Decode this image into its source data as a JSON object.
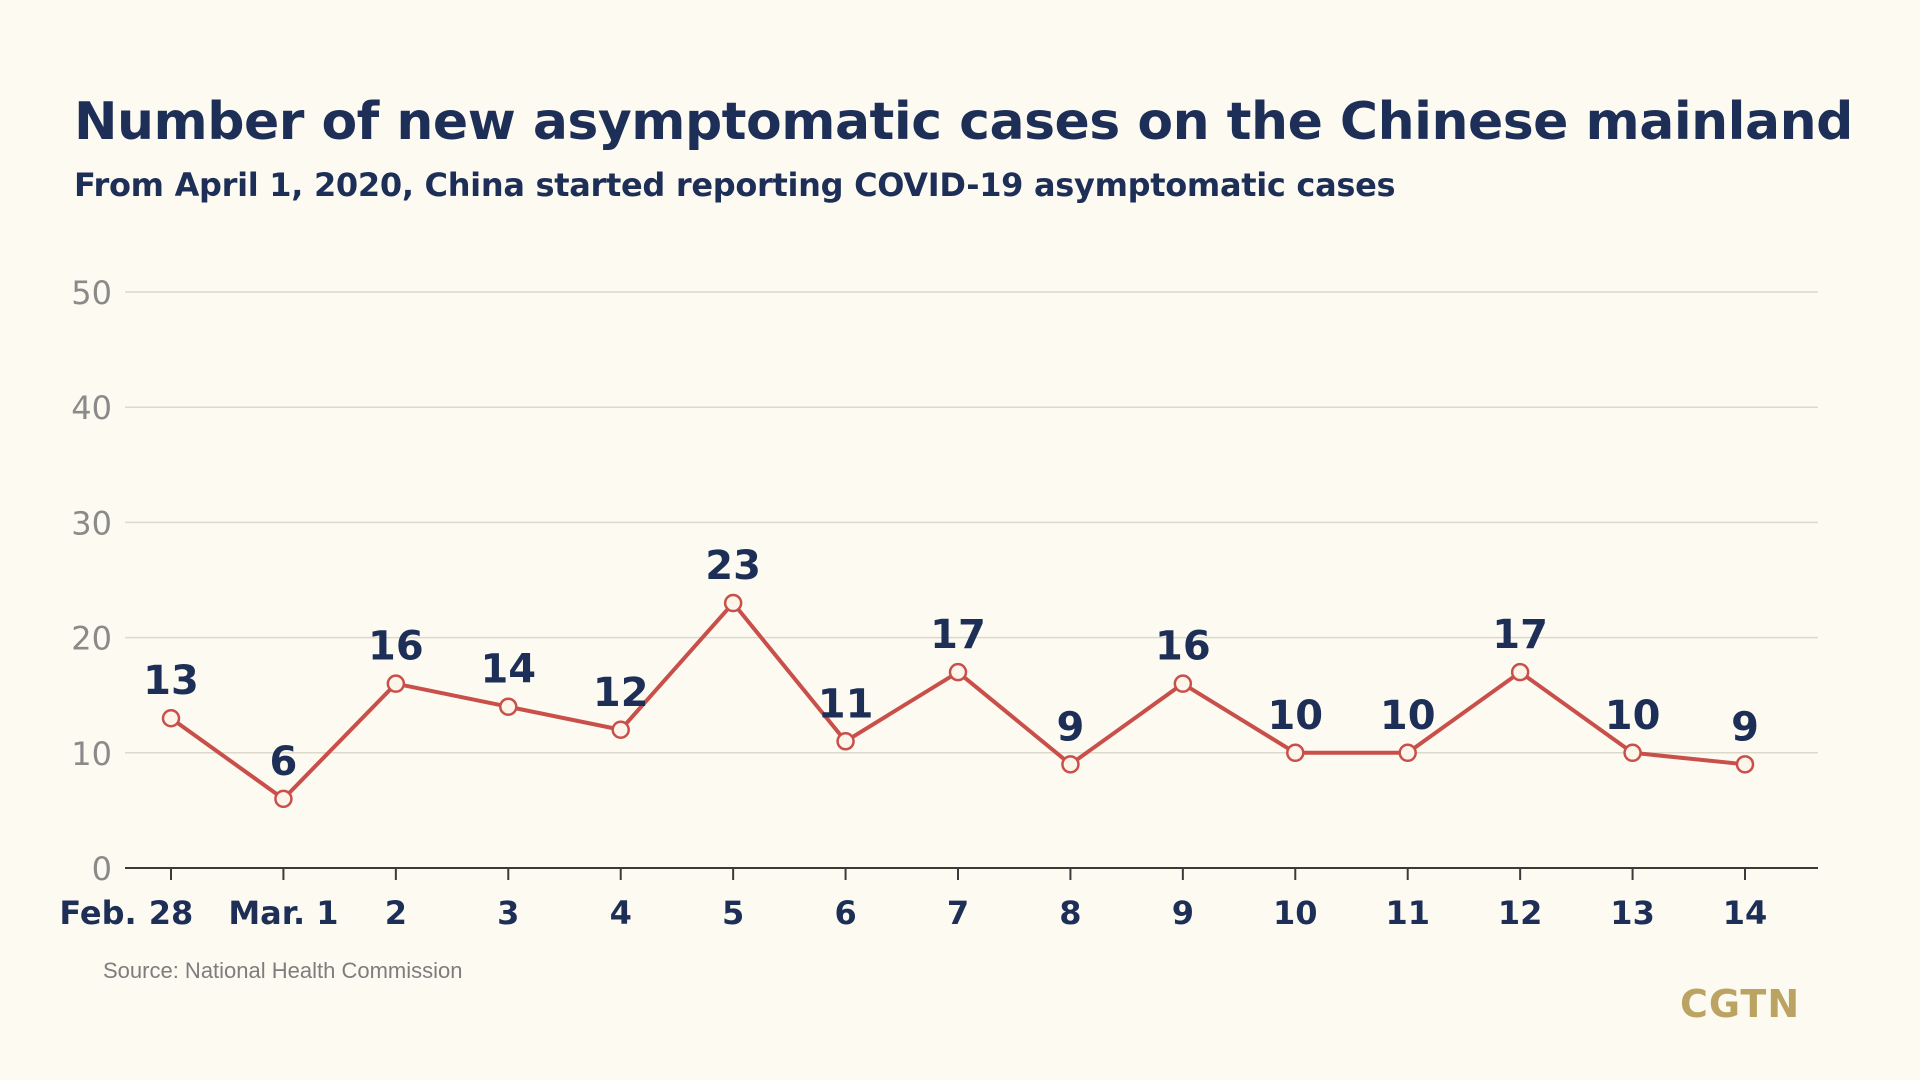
{
  "chart_data": {
    "type": "line",
    "title": "Number of new asymptomatic cases on the Chinese mainland",
    "subtitle": "From April 1, 2020, China started reporting COVID-19 asymptomatic cases",
    "categories": [
      "28",
      "Mar. 1",
      "2",
      "3",
      "4",
      "5",
      "6",
      "7",
      "8",
      "9",
      "10",
      "11",
      "12",
      "13",
      "14"
    ],
    "x_prefix_label": "Feb.",
    "values": [
      13,
      6,
      16,
      14,
      12,
      23,
      11,
      17,
      9,
      16,
      10,
      10,
      17,
      10,
      9
    ],
    "ylim": [
      0,
      50
    ],
    "yticks": [
      0,
      10,
      20,
      30,
      40,
      50
    ],
    "grid": true,
    "line_color": "#c9504a",
    "marker_fill": "#fdf4ea"
  },
  "footer": {
    "source": "Source: National Health Commission",
    "brand": "CGTN"
  }
}
